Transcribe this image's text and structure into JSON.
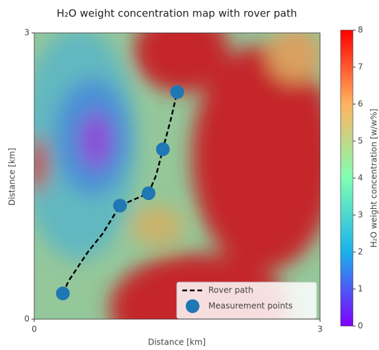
{
  "chart_data": {
    "type": "line",
    "title": "H₂O weight concentration map with rover path",
    "x_label": "Distance [km]",
    "y_label": "Distance [km]",
    "xlim": [
      0,
      3
    ],
    "ylim": [
      0,
      3
    ],
    "xticks": [
      0,
      3
    ],
    "yticks": [
      0,
      3
    ],
    "legend": "lower right",
    "series": [
      {
        "name": "Rover path",
        "type": "line",
        "color": "#000000",
        "x": [
          0.3,
          0.36,
          0.56,
          0.72,
          0.9,
          1.2,
          1.28,
          1.35,
          1.44,
          1.5
        ],
        "values": [
          0.27,
          0.4,
          0.7,
          0.9,
          1.19,
          1.32,
          1.51,
          1.78,
          2.12,
          2.38
        ]
      },
      {
        "name": "Measurement points",
        "type": "scatter",
        "color": "#1f77b4",
        "x": [
          0.3,
          0.9,
          1.2,
          1.35,
          1.5
        ],
        "values": [
          0.27,
          1.19,
          1.32,
          1.78,
          2.38
        ]
      }
    ],
    "colorbar": {
      "label": "H₂O weight concentration [w/w%]",
      "colormap": "rainbow",
      "lim": [
        0,
        8
      ],
      "ticks": [
        0,
        1,
        2,
        3,
        4,
        5,
        6,
        7,
        8
      ]
    }
  }
}
